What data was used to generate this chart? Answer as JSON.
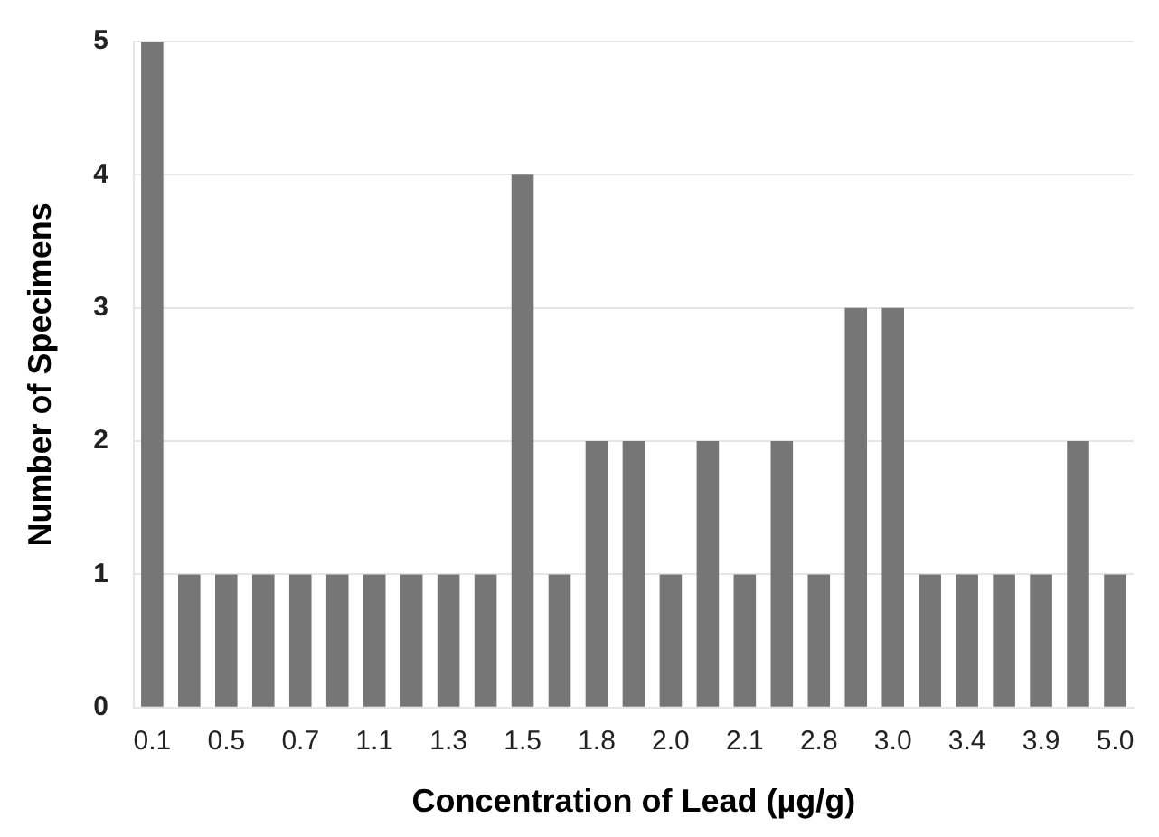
{
  "chart_data": {
    "type": "bar",
    "xlabel": "Concentration of Lead (µg/g)",
    "ylabel": "Number of Specimens",
    "categories": [
      "0.1",
      null,
      "0.5",
      null,
      "0.7",
      null,
      "1.1",
      null,
      "1.3",
      null,
      "1.5",
      null,
      "1.8",
      null,
      "2.0",
      null,
      "2.1",
      null,
      "2.8",
      null,
      "3.0",
      null,
      "3.4",
      null,
      "3.9",
      null,
      "5.0"
    ],
    "values": [
      5,
      1,
      1,
      1,
      1,
      1,
      1,
      1,
      1,
      1,
      4,
      1,
      2,
      2,
      1,
      2,
      1,
      2,
      1,
      3,
      3,
      1,
      1,
      1,
      1,
      2,
      1
    ],
    "color": "#767676",
    "ylim": [
      0,
      5
    ],
    "yticks": [
      0,
      1,
      2,
      3,
      4,
      5
    ],
    "grid": "y",
    "legend": false
  }
}
